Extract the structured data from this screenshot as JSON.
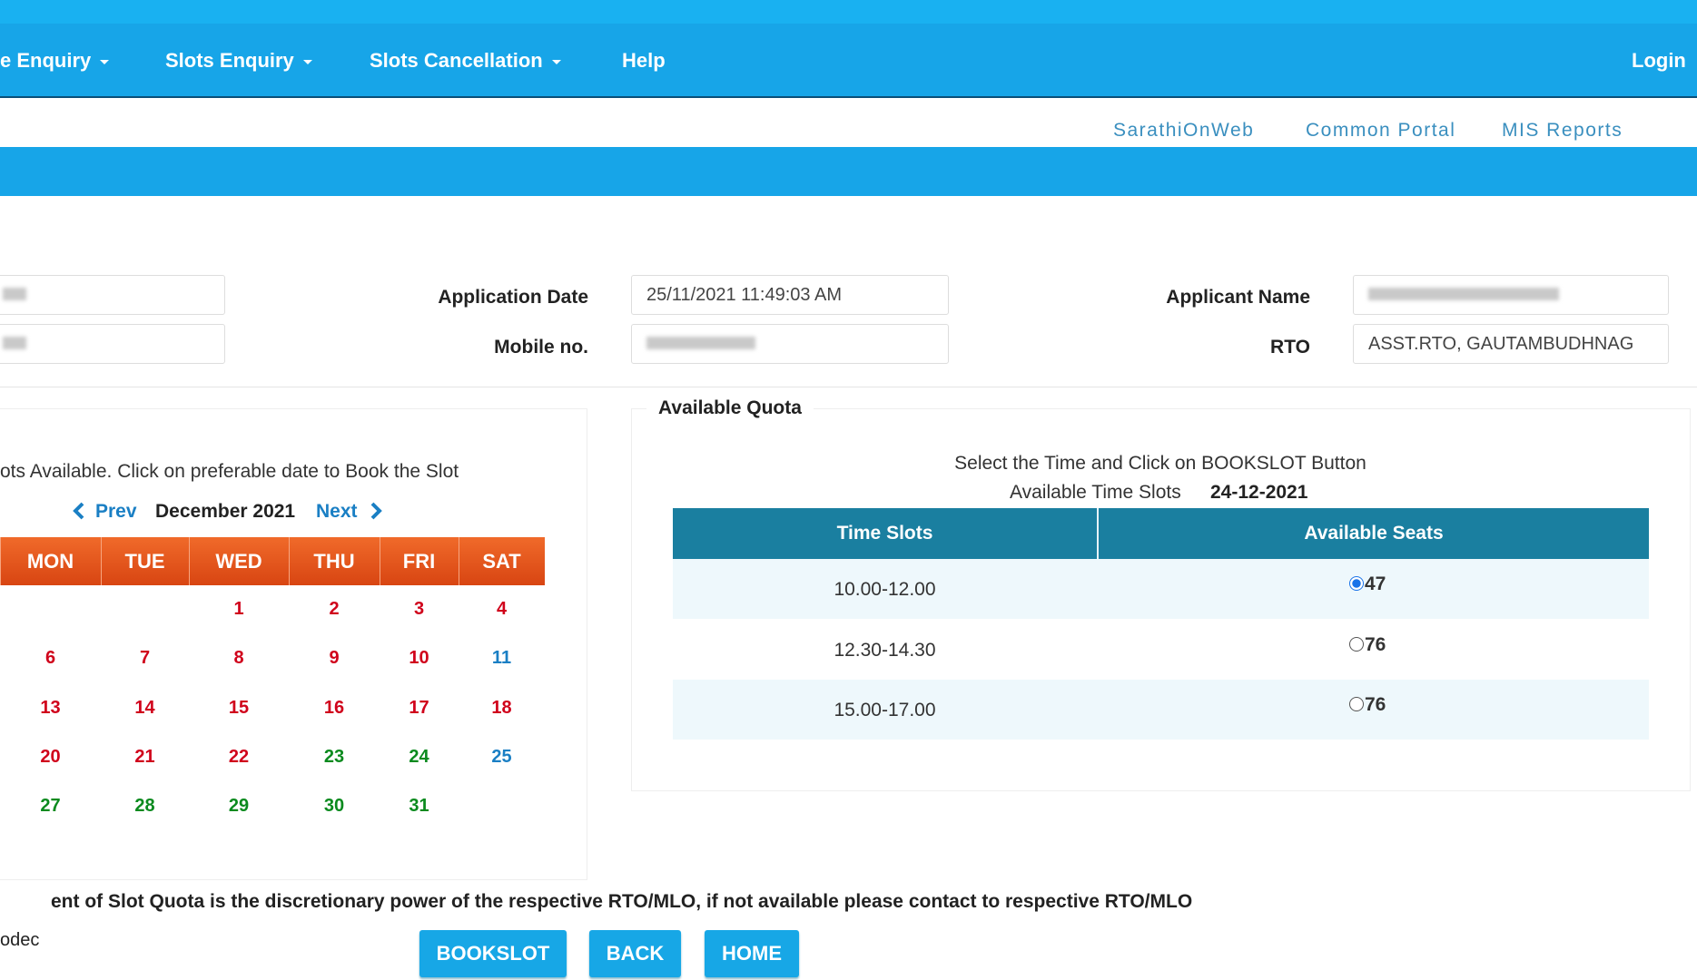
{
  "nav": {
    "items": [
      "e Enquiry",
      "Slots Enquiry",
      "Slots Cancellation",
      "Help"
    ],
    "login": "Login"
  },
  "top_links": [
    "SarathiOnWeb",
    "Common Portal",
    "MIS Reports"
  ],
  "form": {
    "fields": [
      {
        "label": "Application Date",
        "value": "25/11/2021 11:49:03 AM"
      },
      {
        "label": "Mobile no."
      },
      {
        "label": "Applicant Name"
      },
      {
        "label": "RTO",
        "value": "ASST.RTO, GAUTAMBUDHNAG"
      }
    ]
  },
  "calendar": {
    "instruction": "ots Available. Click on preferable date to Book the Slot",
    "prev": "Prev",
    "month": "December 2021",
    "next": "Next",
    "weekdays": [
      "MON",
      "TUE",
      "WED",
      "THU",
      "FRI",
      "SAT"
    ],
    "weeks": [
      [
        null,
        null,
        {
          "day": 1,
          "color": "#d0021b"
        },
        {
          "day": 2,
          "color": "#d0021b"
        },
        {
          "day": 3,
          "color": "#d0021b"
        },
        {
          "day": 4,
          "color": "#d0021b"
        }
      ],
      [
        {
          "day": 6,
          "color": "#d0021b"
        },
        {
          "day": 7,
          "color": "#d0021b"
        },
        {
          "day": 8,
          "color": "#d0021b"
        },
        {
          "day": 9,
          "color": "#d0021b"
        },
        {
          "day": 10,
          "color": "#d0021b"
        },
        {
          "day": 11,
          "color": "#1a7fc4"
        }
      ],
      [
        {
          "day": 13,
          "color": "#d0021b"
        },
        {
          "day": 14,
          "color": "#d0021b"
        },
        {
          "day": 15,
          "color": "#d0021b"
        },
        {
          "day": 16,
          "color": "#d0021b"
        },
        {
          "day": 17,
          "color": "#d0021b"
        },
        {
          "day": 18,
          "color": "#d0021b"
        }
      ],
      [
        {
          "day": 20,
          "color": "#d0021b"
        },
        {
          "day": 21,
          "color": "#d0021b"
        },
        {
          "day": 22,
          "color": "#d0021b"
        },
        {
          "day": 23,
          "color": "#0a8a1e"
        },
        {
          "day": 24,
          "color": "#0a8a1e"
        },
        {
          "day": 25,
          "color": "#1a7fc4"
        }
      ],
      [
        {
          "day": 27,
          "color": "#0a8a1e"
        },
        {
          "day": 28,
          "color": "#0a8a1e"
        },
        {
          "day": 29,
          "color": "#0a8a1e"
        },
        {
          "day": 30,
          "color": "#0a8a1e"
        },
        {
          "day": 31,
          "color": "#0a8a1e"
        },
        null
      ]
    ]
  },
  "quota": {
    "title": "Available Quota",
    "instruction": "Select the Time and Click on BOOKSLOT Button",
    "slots_label": "Available Time Slots",
    "date": "24-12-2021",
    "columns": [
      "Time Slots",
      "Available Seats"
    ],
    "rows": [
      {
        "time": "10.00-12.00",
        "seats": 47,
        "selected": true
      },
      {
        "time": "12.30-14.30",
        "seats": 76,
        "selected": false
      },
      {
        "time": "15.00-17.00",
        "seats": 76,
        "selected": false
      }
    ]
  },
  "note": "ent of Slot Quota is the discretionary power of the respective RTO/MLO, if not available please contact to respective RTO/MLO",
  "footer_text": "odec",
  "buttons": [
    "BOOKSLOT",
    "BACK",
    "HOME"
  ]
}
